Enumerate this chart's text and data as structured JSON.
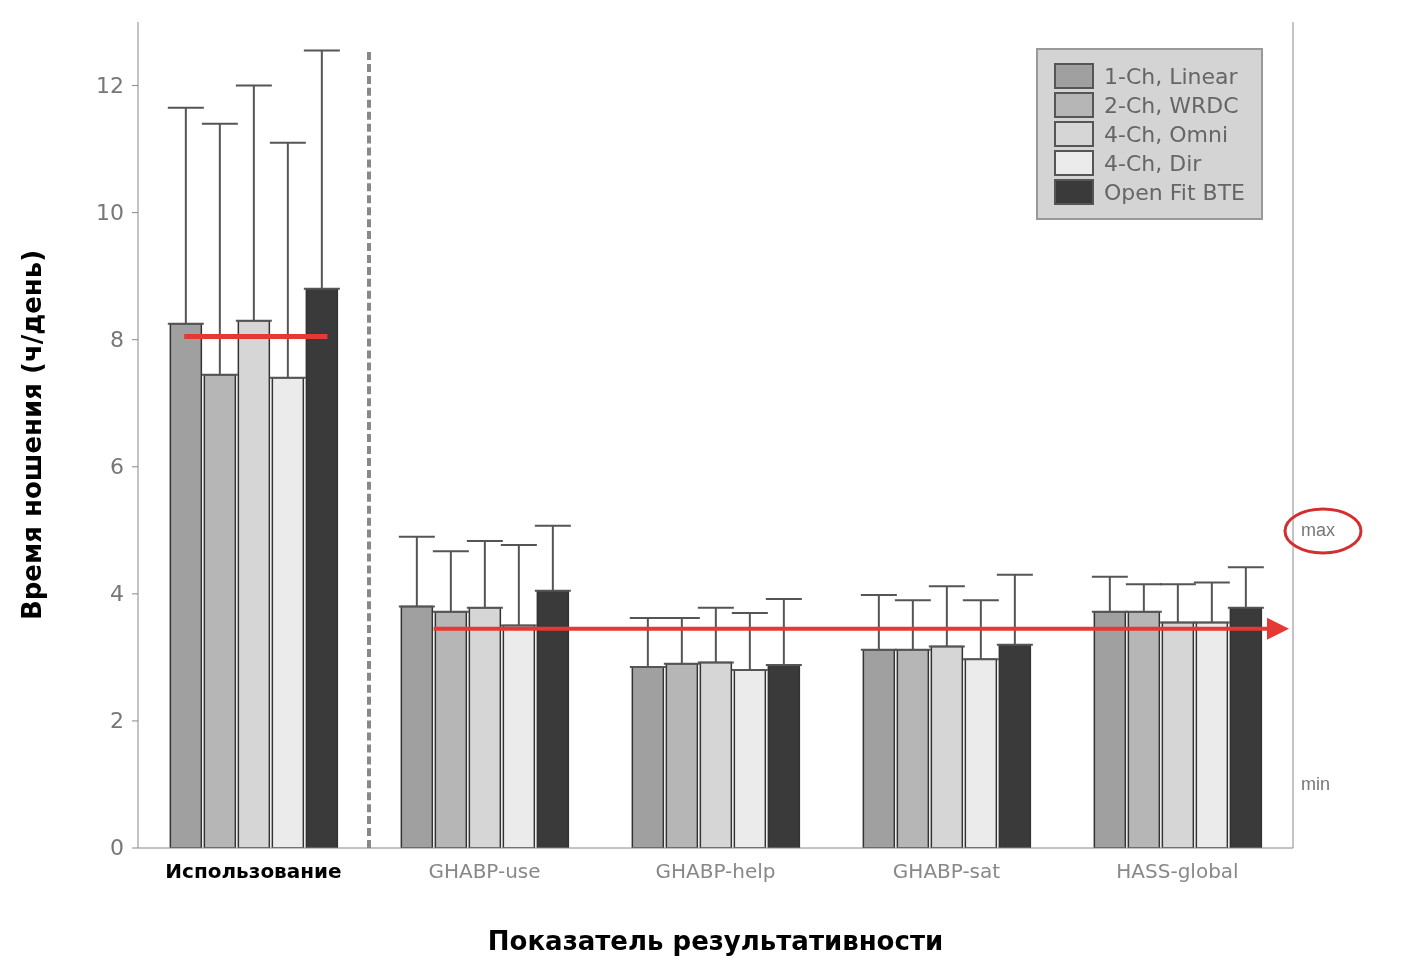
{
  "chart_data": {
    "type": "bar",
    "xlabel": "Показатель результативности",
    "ylabel": "Время ношения (ч/день)",
    "categories": [
      "Использование",
      "GHABP-use",
      "GHABP-help",
      "GHABP-sat",
      "HASS-global"
    ],
    "series": [
      {
        "name": "1-Ch, Linear",
        "color": "#a0a0a0",
        "values": [
          8.25,
          3.8,
          2.85,
          3.12,
          3.72
        ],
        "errors": [
          [
            8.25,
            11.65
          ],
          [
            3.8,
            4.9
          ],
          [
            2.85,
            3.62
          ],
          [
            3.12,
            3.98
          ],
          [
            3.72,
            4.27
          ]
        ]
      },
      {
        "name": "2-Ch, WRDC",
        "color": "#b6b6b6",
        "values": [
          7.45,
          3.72,
          2.9,
          3.12,
          3.72
        ],
        "errors": [
          [
            7.45,
            11.4
          ],
          [
            3.72,
            4.67
          ],
          [
            2.9,
            3.62
          ],
          [
            3.12,
            3.9
          ],
          [
            3.72,
            4.15
          ]
        ]
      },
      {
        "name": "4-Ch, Omni",
        "color": "#d6d6d6",
        "values": [
          8.3,
          3.78,
          2.92,
          3.17,
          3.55
        ],
        "errors": [
          [
            8.3,
            12.0
          ],
          [
            3.78,
            4.83
          ],
          [
            2.92,
            3.78
          ],
          [
            3.17,
            4.12
          ],
          [
            3.55,
            4.15
          ]
        ]
      },
      {
        "name": "4-Ch, Dir",
        "color": "#ebebeb",
        "values": [
          7.4,
          3.5,
          2.8,
          2.97,
          3.55
        ],
        "errors": [
          [
            7.4,
            11.1
          ],
          [
            3.5,
            4.77
          ],
          [
            2.8,
            3.7
          ],
          [
            2.97,
            3.9
          ],
          [
            3.55,
            4.18
          ]
        ]
      },
      {
        "name": "Open Fit BTE",
        "color": "#3a3a3a",
        "values": [
          8.8,
          4.05,
          2.88,
          3.2,
          3.78
        ],
        "errors": [
          [
            8.8,
            12.55
          ],
          [
            4.05,
            5.07
          ],
          [
            2.88,
            3.92
          ],
          [
            3.2,
            4.3
          ],
          [
            3.78,
            4.42
          ]
        ]
      }
    ],
    "ylim": [
      0,
      13
    ],
    "yticks": [
      0,
      2,
      4,
      6,
      8,
      10,
      12
    ],
    "annotations": [
      "max",
      "min"
    ],
    "ref_lines": [
      {
        "axis": "y",
        "value": 8.05,
        "color": "#e53935"
      },
      {
        "axis": "y",
        "value": 3.45,
        "color": "#e53935"
      }
    ],
    "legend": "top right",
    "grid": false
  }
}
